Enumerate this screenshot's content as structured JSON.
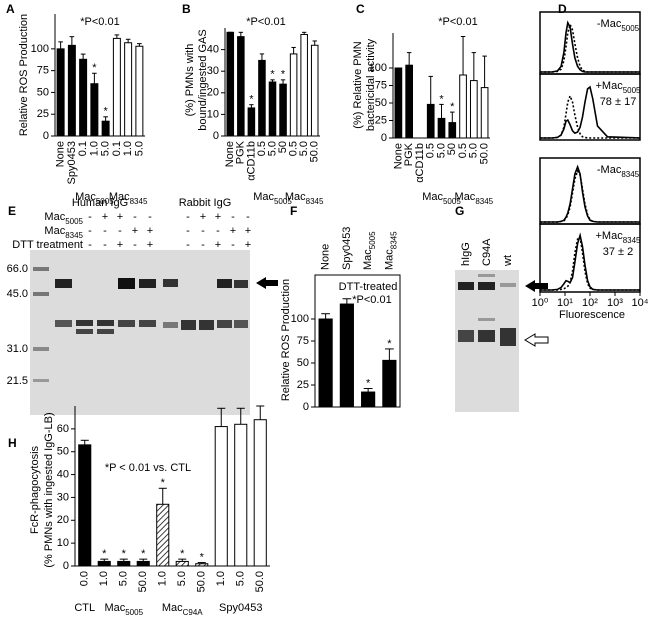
{
  "chart_data": [
    {
      "panel": "A",
      "type": "bar",
      "ylabel": [
        "Relative ROS Production"
      ],
      "categories": [
        "None",
        "Spy0453",
        "0.1",
        "1.0",
        "5.0",
        "0.1",
        "1.0",
        "5.0"
      ],
      "values": [
        100,
        104,
        88,
        60,
        17,
        112,
        107,
        103
      ],
      "errors": [
        8,
        10,
        6,
        12,
        5,
        4,
        4,
        3
      ],
      "colors": [
        "#000000",
        "#000000",
        "#000000",
        "#000000",
        "#000000",
        "#ffffff",
        "#ffffff",
        "#ffffff"
      ],
      "stars": [
        null,
        null,
        null,
        "*",
        "*",
        null,
        null,
        null
      ],
      "groups": [
        {
          "label": "Mac",
          "sub": "5005",
          "span": [
            2,
            4
          ]
        },
        {
          "label": "Mac",
          "sub": "8345",
          "span": [
            5,
            7
          ]
        }
      ],
      "annotations": [
        "*P<0.01"
      ],
      "ylim": [
        0,
        140
      ],
      "yticks": [
        0,
        25,
        50,
        75,
        100
      ]
    },
    {
      "panel": "B",
      "type": "bar",
      "ylabel": [
        "(%) PMNs with",
        "bound/ingested GAS"
      ],
      "categories": [
        "None",
        "PGK",
        "αCD11b",
        "0.5",
        "5.0",
        "50",
        "0.5",
        "5.0",
        "50.0"
      ],
      "values": [
        48,
        46,
        13,
        35,
        25,
        24,
        38,
        47,
        42
      ],
      "errors": [
        0,
        2,
        1.5,
        3,
        1,
        2,
        3,
        1,
        2
      ],
      "colors": [
        "#000000",
        "#000000",
        "#000000",
        "#000000",
        "#000000",
        "#000000",
        "#ffffff",
        "#ffffff",
        "#ffffff"
      ],
      "stars": [
        null,
        null,
        "*",
        null,
        "*",
        "*",
        null,
        null,
        null
      ],
      "groups": [
        {
          "label": "Mac",
          "sub": "5005",
          "span": [
            3,
            5
          ]
        },
        {
          "label": "Mac",
          "sub": "8345",
          "span": [
            6,
            8
          ]
        }
      ],
      "annotations": [
        "*P<0.01"
      ],
      "ylim": [
        0,
        50
      ],
      "yticks": [
        0,
        10,
        20,
        30,
        40
      ]
    },
    {
      "panel": "C",
      "type": "bar",
      "ylabel": [
        "(%) Relative PMN",
        "bactericidal activity"
      ],
      "categories": [
        "None",
        "PGK",
        "αCD11b",
        "0.5",
        "5.0",
        "50",
        "0.5",
        "5.0",
        "50.0"
      ],
      "values": [
        100,
        104,
        null,
        48,
        28,
        22,
        90,
        82,
        72
      ],
      "errors": [
        0,
        18,
        null,
        40,
        20,
        15,
        55,
        40,
        45
      ],
      "colors": [
        "#000000",
        "#000000",
        "#000000",
        "#000000",
        "#000000",
        "#000000",
        "#ffffff",
        "#ffffff",
        "#ffffff"
      ],
      "stars": [
        null,
        null,
        null,
        null,
        "*",
        "*",
        null,
        null,
        null
      ],
      "groups": [
        {
          "label": "Mac",
          "sub": "5005",
          "span": [
            3,
            5
          ]
        },
        {
          "label": "Mac",
          "sub": "8345",
          "span": [
            6,
            8
          ]
        }
      ],
      "annotations": [
        "*P<0.01"
      ],
      "ylim": [
        0,
        150
      ],
      "yticks": [
        0,
        25,
        50,
        75,
        100
      ]
    },
    {
      "panel": "D",
      "type": "line",
      "log_x": true,
      "xlabel": "Fluorescence",
      "x": [
        1,
        3,
        5,
        7,
        9,
        11,
        13,
        16,
        20,
        25,
        32,
        40,
        50,
        63,
        80,
        100,
        130,
        200,
        500,
        10000
      ],
      "xlim": [
        1,
        10000
      ],
      "xticks": [
        {
          "value": 1,
          "label": "10⁰"
        },
        {
          "value": 10,
          "label": "10¹"
        },
        {
          "value": 100,
          "label": "10²"
        },
        {
          "value": 1000,
          "label": "10³"
        },
        {
          "value": 10000,
          "label": "10⁴"
        }
      ],
      "ylim": [
        0,
        100
      ],
      "subplots": [
        {
          "labels": [
            {
              "label": "-Mac",
              "sub": "5005"
            }
          ],
          "series": [
            {
              "style": "solid",
              "color": "#000000",
              "values": [
                0,
                0,
                2,
                10,
                35,
                70,
                88,
                80,
                50,
                25,
                10,
                4,
                1,
                0,
                0,
                0,
                0,
                0,
                0,
                0
              ]
            },
            {
              "style": "dotted",
              "color": "#000000",
              "values": [
                0,
                0,
                1,
                5,
                20,
                45,
                70,
                85,
                75,
                50,
                25,
                10,
                3,
                1,
                0,
                0,
                0,
                0,
                0,
                0
              ]
            }
          ]
        },
        {
          "labels": [
            {
              "label": "+Mac",
              "sub": "5005"
            },
            "78 ± 17"
          ],
          "series": [
            {
              "style": "solid",
              "color": "#000000",
              "values": [
                0,
                0,
                1,
                5,
                15,
                28,
                30,
                22,
                12,
                8,
                10,
                18,
                35,
                60,
                82,
                85,
                65,
                20,
                2,
                0
              ]
            },
            {
              "style": "dotted",
              "color": "#000000",
              "values": [
                0,
                0,
                1,
                5,
                18,
                40,
                60,
                70,
                60,
                38,
                18,
                7,
                2,
                1,
                0,
                0,
                0,
                0,
                0,
                0
              ]
            }
          ]
        },
        {
          "labels": [
            {
              "label": "-Mac",
              "sub": "8345"
            }
          ],
          "series": [
            {
              "style": "solid",
              "color": "#000000",
              "values": [
                0,
                0,
                0,
                1,
                3,
                8,
                15,
                30,
                55,
                80,
                92,
                80,
                50,
                25,
                10,
                3,
                1,
                0,
                0,
                0
              ]
            },
            {
              "style": "dotted",
              "color": "#000000",
              "values": [
                0,
                0,
                0,
                1,
                2,
                6,
                12,
                25,
                48,
                72,
                85,
                78,
                55,
                30,
                12,
                4,
                1,
                0,
                0,
                0
              ]
            }
          ]
        },
        {
          "labels": [
            {
              "label": "+Mac",
              "sub": "8345"
            },
            "37 ± 2"
          ],
          "series": [
            {
              "style": "solid",
              "color": "#000000",
              "values": [
                0,
                0,
                1,
                4,
                10,
                15,
                14,
                12,
                20,
                45,
                75,
                88,
                70,
                40,
                15,
                5,
                1,
                0,
                0,
                0
              ]
            },
            {
              "style": "dotted",
              "color": "#000000",
              "values": [
                0,
                0,
                0,
                1,
                2,
                4,
                6,
                12,
                30,
                60,
                82,
                85,
                60,
                30,
                10,
                3,
                1,
                0,
                0,
                0
              ]
            }
          ]
        }
      ]
    },
    {
      "panel": "F",
      "type": "bar",
      "ylabel": [
        "Relative ROS Production"
      ],
      "frame": true,
      "category_axis": "top",
      "categories": [
        "None",
        "Spy0453",
        {
          "label": "Mac",
          "sub": "5005"
        },
        {
          "label": "Mac",
          "sub": "8345"
        }
      ],
      "values": [
        100,
        117,
        17,
        53
      ],
      "errors": [
        6,
        6,
        4,
        13
      ],
      "colors": [
        "#000000",
        "#000000",
        "#000000",
        "#000000"
      ],
      "stars": [
        null,
        null,
        "*",
        "*"
      ],
      "annotations": [
        "DTT-treated",
        "*P<0.01"
      ],
      "ylim": [
        0,
        150
      ],
      "yticks": [
        0,
        25,
        50,
        75,
        100
      ]
    },
    {
      "panel": "H",
      "type": "bar",
      "ylabel": [
        "FcR-phagocytosis",
        "(% PMNs with ingested IgG-LB)"
      ],
      "categories": [
        "0.0",
        "1.0",
        "5.0",
        "50.0",
        "1.0",
        "5.0",
        "50.0",
        "1.0",
        "5.0",
        "50.0"
      ],
      "values": [
        53,
        2,
        2,
        2,
        27,
        2,
        1,
        61,
        62,
        64
      ],
      "errors": [
        2,
        1,
        1,
        1,
        7,
        1,
        0.5,
        8,
        7,
        6
      ],
      "colors": [
        "#000000",
        "#000000",
        "#000000",
        "#000000",
        "hatch",
        "hatch",
        "hatch",
        "#ffffff",
        "#ffffff",
        "#ffffff"
      ],
      "stars": [
        null,
        "*",
        "*",
        "*",
        "*",
        "*",
        "*",
        null,
        null,
        null
      ],
      "groups": [
        {
          "label": "CTL",
          "span": [
            0,
            0
          ]
        },
        {
          "label": "Mac",
          "sub": "5005",
          "span": [
            1,
            3
          ]
        },
        {
          "label": "Mac",
          "sub": "C94A",
          "span": [
            4,
            6
          ]
        },
        {
          "label": "Spy0453",
          "span": [
            7,
            9
          ]
        }
      ],
      "annotations": [
        "*P < 0.01 vs. CTL"
      ],
      "ylim": [
        0,
        70
      ],
      "yticks": [
        0,
        10,
        20,
        30,
        40,
        50,
        60
      ]
    }
  ],
  "gels": [
    {
      "panel": "E",
      "headers": [
        "Human IgG",
        "Rabbit IgG"
      ],
      "rows": [
        {
          "label": {
            "label": "Mac",
            "sub": "5005"
          },
          "signs": [
            "-",
            "+",
            "+",
            "-",
            "-",
            "-",
            "+",
            "+",
            "-",
            "-"
          ]
        },
        {
          "label": {
            "label": "Mac",
            "sub": "8345"
          },
          "signs": [
            "-",
            "-",
            "-",
            "+",
            "+",
            "-",
            "-",
            "-",
            "+",
            "+"
          ]
        },
        {
          "label": {
            "label": "DTT treatment"
          },
          "signs": [
            "-",
            "-",
            "+",
            "-",
            "+",
            "-",
            "-",
            "+",
            "-",
            "+"
          ]
        }
      ],
      "markers": [
        "66.0",
        "45.0",
        "31.0",
        "21.5"
      ]
    },
    {
      "panel": "G",
      "lanes": [
        "hIgG",
        "C94A",
        "wt"
      ]
    }
  ]
}
